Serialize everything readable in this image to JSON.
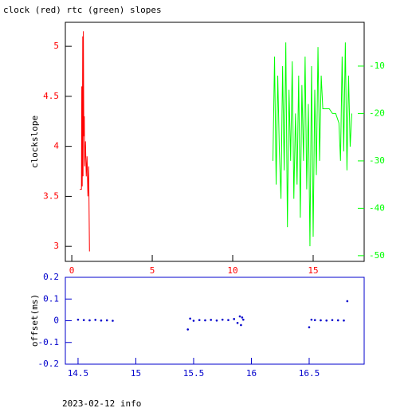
{
  "chart_data": [
    {
      "type": "line",
      "title": "clock (red) rtc (green) slopes",
      "ylabel": "clockslope",
      "xlim": [
        -0.4,
        18.17
      ],
      "ylim": [
        2.85,
        5.24
      ],
      "y2lim": [
        -51.2,
        -0.76
      ],
      "xticks": [
        0,
        5,
        10,
        15
      ],
      "yticks": [
        3,
        3.5,
        4,
        4.5,
        5
      ],
      "y2ticks": [
        -50,
        -40,
        -30,
        -20,
        -10
      ],
      "series": [
        {
          "color": "#ff0000",
          "x": [
            0.5,
            0.55,
            0.6,
            0.62,
            0.65,
            0.68,
            0.7,
            0.72,
            0.75,
            0.78,
            0.8,
            0.85,
            0.9,
            0.95,
            1.0,
            1.05,
            1.1
          ],
          "values": [
            3.57,
            3.57,
            3.57,
            4.6,
            3.6,
            5.1,
            3.7,
            5.15,
            4.1,
            4.3,
            3.8,
            4.05,
            3.7,
            3.9,
            3.5,
            3.8,
            2.95
          ]
        },
        {
          "color": "#00ff00",
          "axis": "y2",
          "x": [
            12.5,
            12.6,
            12.7,
            12.8,
            12.9,
            13.0,
            13.1,
            13.2,
            13.3,
            13.4,
            13.5,
            13.6,
            13.7,
            13.8,
            13.9,
            14.0,
            14.1,
            14.2,
            14.3,
            14.4,
            14.5,
            14.6,
            14.7,
            14.8,
            14.9,
            15.0,
            15.1,
            15.2,
            15.3,
            15.4,
            15.5,
            15.6,
            15.8,
            16.0,
            16.2,
            16.4,
            16.6,
            16.7,
            16.8,
            16.9,
            17.0,
            17.1,
            17.2,
            17.3,
            17.4
          ],
          "values": [
            -30,
            -8,
            -35,
            -12,
            -28,
            -38,
            -10,
            -32,
            -5,
            -44,
            -15,
            -30,
            -9,
            -38,
            -20,
            -35,
            -12,
            -42,
            -14,
            -30,
            -8,
            -36,
            -18,
            -48,
            -10,
            -46,
            -15,
            -33,
            -6,
            -30,
            -12,
            -19,
            -19,
            -19,
            -20,
            -20,
            -22,
            -30,
            -8,
            -28,
            -5,
            -32,
            -12,
            -27,
            -20
          ]
        }
      ]
    },
    {
      "type": "scatter",
      "ylabel": "offset(ms)",
      "xlim": [
        14.39,
        16.976
      ],
      "ylim": [
        -0.2,
        0.2
      ],
      "xticks": [
        14.5,
        15,
        15.5,
        16,
        16.5
      ],
      "yticks": [
        -0.2,
        -0.1,
        0,
        0.1,
        0.2
      ],
      "series": [
        {
          "color": "#0000cc",
          "x": [
            14.5,
            14.55,
            14.6,
            14.65,
            14.7,
            14.75,
            14.8,
            15.45,
            15.47,
            15.5,
            15.55,
            15.6,
            15.65,
            15.7,
            15.75,
            15.8,
            15.85,
            15.88,
            15.9,
            15.91,
            15.92,
            15.93,
            16.5,
            16.52,
            16.55,
            16.6,
            16.65,
            16.7,
            16.75,
            16.8,
            16.83
          ],
          "values": [
            0.005,
            0.003,
            0.002,
            0.004,
            0.001,
            0.002,
            0.0,
            -0.04,
            0.01,
            0.0,
            0.003,
            0.002,
            0.004,
            0.001,
            0.005,
            0.003,
            0.008,
            -0.01,
            0.02,
            -0.02,
            0.015,
            0.005,
            -0.03,
            0.005,
            0.003,
            0.002,
            0.001,
            0.003,
            0.002,
            0.001,
            0.09
          ]
        }
      ]
    }
  ],
  "footer": "2023-02-12 info"
}
